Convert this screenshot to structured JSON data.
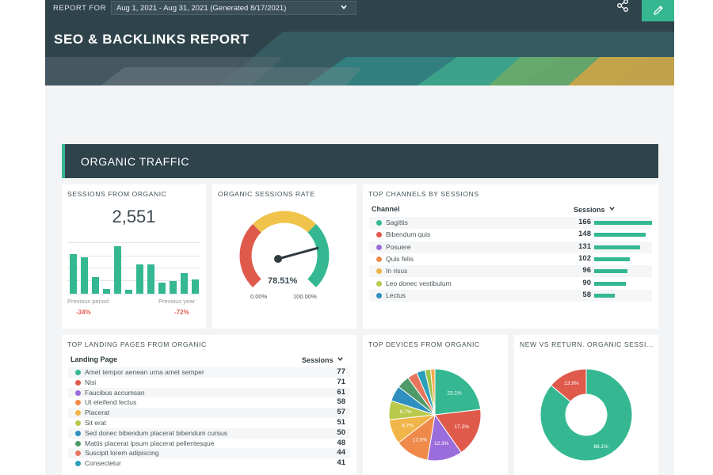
{
  "header": {
    "report_for_label": "REPORT FOR",
    "date_range": "Aug 1, 2021 - Aug 31, 2021 (Generated 8/17/2021)",
    "title": "SEO & BACKLINKS REPORT"
  },
  "section": {
    "title": "ORGANIC TRAFFIC"
  },
  "sessions_card": {
    "title": "SESSIONS FROM ORGANIC",
    "value": "2,551",
    "prev_period_label": "Previous period",
    "prev_year_label": "Previous year",
    "prev_period_change": "-34%",
    "prev_year_change": "-72%",
    "bars": [
      0.62,
      0.58,
      0.26,
      0.08,
      0.75,
      0.06,
      0.46,
      0.46,
      0.18,
      0.2,
      0.32,
      0.22
    ],
    "bar_color": "#35b892"
  },
  "gauge_card": {
    "title": "ORGANIC SESSIONS RATE",
    "value": "78.51%",
    "value_number": 78.51,
    "min_label": "0.00%",
    "max_label": "100.00%",
    "colors": [
      "#e05a4c",
      "#f0c34a",
      "#35b892"
    ]
  },
  "channels_card": {
    "title": "TOP CHANNELS BY SESSIONS",
    "col_channel": "Channel",
    "col_sessions": "Sessions",
    "rows": [
      {
        "label": "Sagittis",
        "value": "166",
        "number": 166,
        "color": "#35b892"
      },
      {
        "label": "Bibendum quis",
        "value": "148",
        "number": 148,
        "color": "#e05a4c"
      },
      {
        "label": "Posuere",
        "value": "131",
        "number": 131,
        "color": "#9b6ddc"
      },
      {
        "label": "Quis felis",
        "value": "102",
        "number": 102,
        "color": "#ef8a4b"
      },
      {
        "label": "In risus",
        "value": "96",
        "number": 96,
        "color": "#f0b548"
      },
      {
        "label": "Leo donec vestibulum",
        "value": "90",
        "number": 90,
        "color": "#b8c94b"
      },
      {
        "label": "Lectus",
        "value": "58",
        "number": 58,
        "color": "#2f8fbf"
      }
    ]
  },
  "landing_card": {
    "title": "TOP LANDING PAGES FROM ORGANIC",
    "col_page": "Landing Page",
    "col_sessions": "Sessions",
    "rows": [
      {
        "label": "Amet tempor aenean urna amet semper",
        "value": "77",
        "color": "#35b892"
      },
      {
        "label": "Nisi",
        "value": "71",
        "color": "#e05a4c"
      },
      {
        "label": "Faucibus accumsan",
        "value": "61",
        "color": "#9b6ddc"
      },
      {
        "label": "Ut eleifend lectus",
        "value": "58",
        "color": "#ef8a4b"
      },
      {
        "label": "Placerat",
        "value": "57",
        "color": "#f0b548"
      },
      {
        "label": "Sit erat",
        "value": "51",
        "color": "#b8c94b"
      },
      {
        "label": "Sed donec bibendum placerat bibendum cursus",
        "value": "50",
        "color": "#2f8fbf"
      },
      {
        "label": "Mattis placerat ipsum placerat pellentesque",
        "value": "48",
        "color": "#4f9a69"
      },
      {
        "label": "Suscipit lorem adipiscing",
        "value": "44",
        "color": "#e8765f"
      },
      {
        "label": "Consectetur",
        "value": "41",
        "color": "#2a9fb8"
      }
    ]
  },
  "devices_card": {
    "title": "TOP DEVICES FROM ORGANIC",
    "slices": [
      {
        "label": "23.1%",
        "value": 23.1,
        "color": "#35b892"
      },
      {
        "label": "17.2%",
        "value": 17.2,
        "color": "#e05a4c"
      },
      {
        "label": "12.3%",
        "value": 12.3,
        "color": "#9b6ddc"
      },
      {
        "label": "12.0%",
        "value": 12.0,
        "color": "#ef8a4b"
      },
      {
        "label": "8.7%",
        "value": 8.7,
        "color": "#f0b548"
      },
      {
        "label": "6.7%",
        "value": 6.7,
        "color": "#b8c94b"
      },
      {
        "label": "",
        "value": 5.5,
        "color": "#2f8fbf"
      },
      {
        "label": "",
        "value": 4.5,
        "color": "#4f9a69"
      },
      {
        "label": "",
        "value": 3.5,
        "color": "#e8765f"
      },
      {
        "label": "",
        "value": 3.0,
        "color": "#2a9fb8"
      },
      {
        "label": "",
        "value": 2.0,
        "color": "#9cc34a"
      },
      {
        "label": "",
        "value": 1.5,
        "color": "#f3a94e"
      }
    ]
  },
  "new_return_card": {
    "title": "NEW VS RETURN. ORGANIC SESSI...",
    "slices": [
      {
        "label": "86.1%",
        "value": 86.1,
        "color": "#35b892"
      },
      {
        "label": "13.9%",
        "value": 13.9,
        "color": "#e05a4c"
      }
    ]
  },
  "icons": {
    "share": "share-icon",
    "edit": "pencil-icon",
    "dropdown": "chevron-down-icon"
  }
}
